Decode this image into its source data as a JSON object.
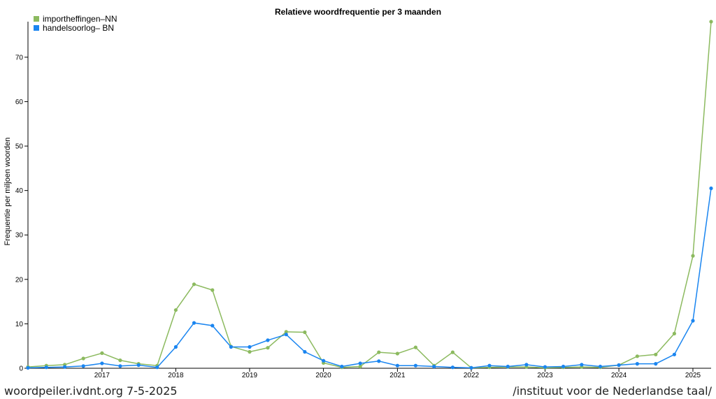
{
  "chart_data": {
    "type": "line",
    "title": "Relatieve woordfrequentie per 3 maanden",
    "xlabel": "",
    "ylabel": "Frequentie per miljoen woorden",
    "ylim": [
      0,
      78
    ],
    "yticks": [
      0,
      10,
      20,
      30,
      40,
      50,
      60,
      70
    ],
    "x_tick_labels": [
      "2017",
      "2018",
      "2019",
      "2020",
      "2021",
      "2022",
      "2023",
      "2024",
      "2025"
    ],
    "x": [
      "2016-01-01",
      "2016-04-01",
      "2016-07-01",
      "2016-10-01",
      "2017-01-01",
      "2017-04-01",
      "2017-07-01",
      "2017-10-01",
      "2018-01-01",
      "2018-04-01",
      "2018-07-01",
      "2018-10-01",
      "2019-01-01",
      "2019-04-01",
      "2019-07-01",
      "2019-10-01",
      "2020-01-01",
      "2020-04-01",
      "2020-07-01",
      "2020-10-01",
      "2021-01-01",
      "2021-04-01",
      "2021-07-01",
      "2021-10-01",
      "2022-01-01",
      "2022-04-01",
      "2022-07-01",
      "2022-10-01",
      "2023-01-01",
      "2023-04-01",
      "2023-07-01",
      "2023-10-01",
      "2024-01-01",
      "2024-04-01",
      "2024-07-01",
      "2024-10-01",
      "2025-01-01",
      "2025-04-01"
    ],
    "legend_position": "top-left",
    "series": [
      {
        "name": "importheffingen–NN",
        "color": "#8cba5f",
        "values": [
          0.3,
          0.6,
          0.8,
          2.2,
          3.4,
          1.8,
          1.0,
          0.6,
          13.1,
          18.9,
          17.6,
          4.9,
          3.7,
          4.6,
          8.2,
          8.1,
          1.2,
          0.2,
          0.4,
          3.6,
          3.3,
          4.7,
          0.6,
          3.6,
          0.1,
          0.2,
          0.3,
          0.3,
          0.1,
          0.2,
          0.3,
          0.2,
          0.7,
          2.7,
          3.1,
          7.8,
          25.3,
          78.0
        ]
      },
      {
        "name": "handelsoorlog– BN",
        "color": "#1a85f0",
        "values": [
          0.1,
          0.2,
          0.3,
          0.5,
          1.1,
          0.5,
          0.7,
          0.2,
          4.8,
          10.2,
          9.6,
          4.8,
          4.8,
          6.3,
          7.6,
          3.7,
          1.7,
          0.4,
          1.1,
          1.6,
          0.6,
          0.6,
          0.4,
          0.2,
          0.1,
          0.6,
          0.4,
          0.8,
          0.3,
          0.4,
          0.8,
          0.4,
          0.7,
          1.0,
          1.0,
          3.1,
          10.7,
          40.5
        ]
      }
    ]
  },
  "footer": {
    "left": "woordpeiler.ivdnt.org 7-5-2025",
    "right": "/instituut voor de Nederlandse taal/"
  }
}
